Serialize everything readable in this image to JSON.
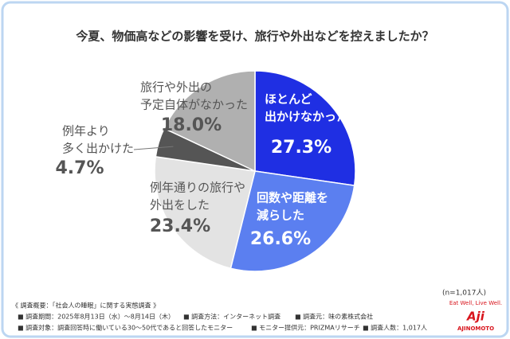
{
  "chart_data": {
    "type": "pie",
    "title": "今夏、物価高などの影響を受け、旅行や外出などを控えましたか？",
    "categories": [
      [
        "ほとんど",
        "出かけなかった"
      ],
      [
        "回数や距離を",
        "減らした"
      ],
      [
        "例年通りの旅行や",
        "外出をした"
      ],
      [
        "例年より",
        "多く出かけた"
      ],
      [
        "旅行や外出の",
        "予定自体がなかった"
      ]
    ],
    "values": [
      27.3,
      26.6,
      23.4,
      4.7,
      18.0
    ],
    "value_labels": [
      "27.3%",
      "26.6%",
      "23.4%",
      "4.7%",
      "18.0%"
    ],
    "colors": [
      "#1f2fe3",
      "#5b7ff0",
      "#e3e3e3",
      "#555555",
      "#b0b0b0"
    ],
    "note": "(n=1,017人)",
    "footer": [
      "《 調査概要：「社会人の睡眠」に関する実態調査 》",
      [
        "■ 調査期間：2025年8月13日（水）～8月14日（木）",
        "■ 調査方法：インターネット調査",
        "■ 調査元：味の素株式会社"
      ],
      [
        "■ 調査対象：調査回答時に働いている30～50代であると回答したモニター",
        "■ モニター提供元：PRIZMAリサーチ",
        "■ 調査人数：1,017人"
      ]
    ],
    "logo": {
      "tagline": "Eat Well, Live Well.",
      "mark": "Aji",
      "name": "AJINOMOTO"
    }
  }
}
